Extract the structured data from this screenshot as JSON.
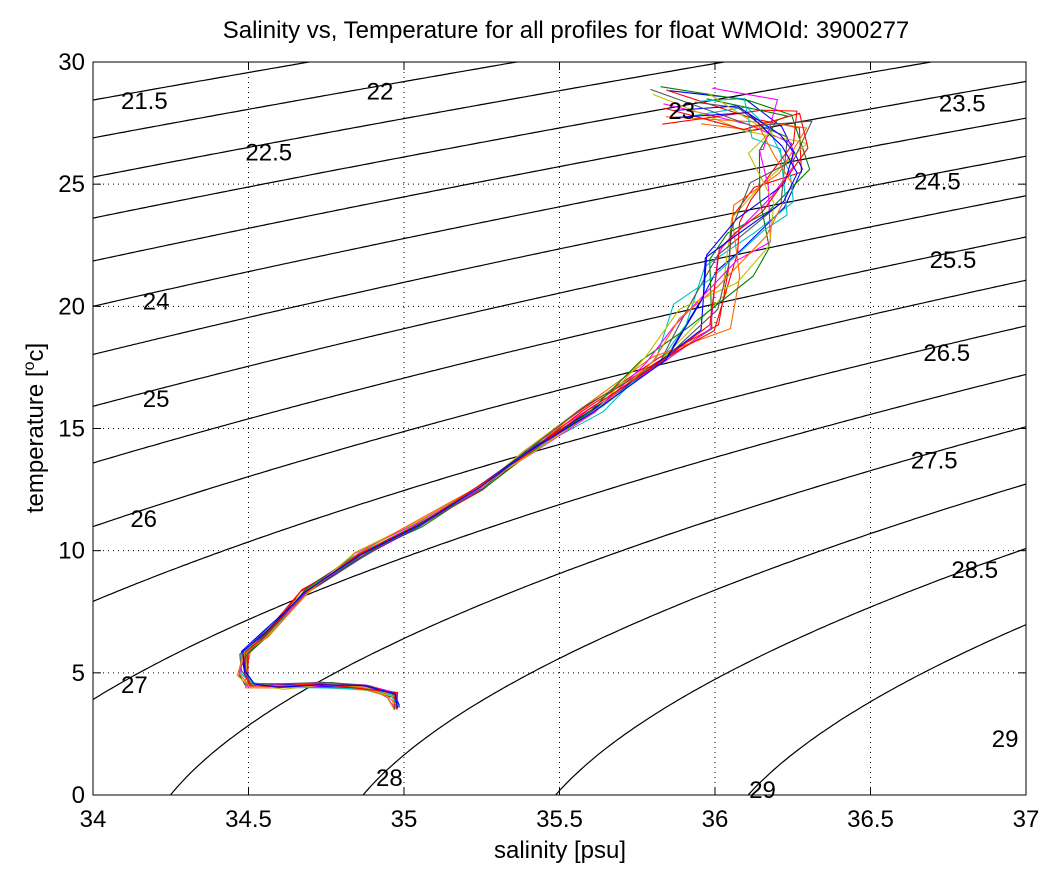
{
  "chart_data": {
    "type": "line",
    "title": "Salinity vs, Temperature for all profiles for float WMOId: 3900277",
    "xlabel": "salinity [psu]",
    "ylabel_main": "temperature [",
    "ylabel_sup": "o",
    "ylabel_end": "c]",
    "xlim": [
      34,
      37
    ],
    "ylim": [
      0,
      30
    ],
    "xticks": [
      34,
      34.5,
      35,
      35.5,
      36,
      36.5,
      37
    ],
    "xtick_labels": [
      "34",
      "34.5",
      "35",
      "35.5",
      "36",
      "36.5",
      "37"
    ],
    "yticks": [
      0,
      5,
      10,
      15,
      20,
      25,
      30
    ],
    "ytick_labels": [
      "0",
      "5",
      "10",
      "15",
      "20",
      "25",
      "30"
    ],
    "grid": true,
    "sigma_levels": [
      21.5,
      22,
      22.5,
      23,
      23.5,
      24,
      24.5,
      25,
      25.5,
      26,
      26.5,
      27,
      27.5,
      28,
      28.5,
      29
    ],
    "contour_labels": [
      {
        "text": "21.5",
        "x": 34.09,
        "y": 28.4
      },
      {
        "text": "22",
        "x": 34.88,
        "y": 28.8
      },
      {
        "text": "22.5",
        "x": 34.49,
        "y": 26.3
      },
      {
        "text": "23",
        "x": 35.85,
        "y": 28.0
      },
      {
        "text": "23.5",
        "x": 36.72,
        "y": 28.3
      },
      {
        "text": "24",
        "x": 34.16,
        "y": 20.2
      },
      {
        "text": "24.5",
        "x": 36.64,
        "y": 25.1
      },
      {
        "text": "25",
        "x": 34.16,
        "y": 16.2
      },
      {
        "text": "25.5",
        "x": 36.69,
        "y": 21.9
      },
      {
        "text": "26",
        "x": 34.12,
        "y": 11.3
      },
      {
        "text": "26.5",
        "x": 36.67,
        "y": 18.1
      },
      {
        "text": "27",
        "x": 34.09,
        "y": 4.5
      },
      {
        "text": "27.5",
        "x": 36.63,
        "y": 13.7
      },
      {
        "text": "28",
        "x": 34.91,
        "y": 0.7
      },
      {
        "text": "28.5",
        "x": 36.76,
        "y": 9.2
      },
      {
        "text": "29",
        "x": 36.11,
        "y": 0.2
      },
      {
        "text": "29",
        "x": 36.89,
        "y": 2.3
      }
    ],
    "series_colors": [
      "#ff0000",
      "#0000ff",
      "#008000",
      "#00c0c0",
      "#ff00ff",
      "#c0c000",
      "#555555",
      "#ff6600"
    ],
    "profile_count": 18,
    "profile_base": [
      [
        34.97,
        3.6
      ],
      [
        34.96,
        4.1
      ],
      [
        34.88,
        4.4
      ],
      [
        34.75,
        4.5
      ],
      [
        34.6,
        4.45
      ],
      [
        34.5,
        4.5
      ],
      [
        34.48,
        5.0
      ],
      [
        34.49,
        5.8
      ],
      [
        34.56,
        6.6
      ],
      [
        34.68,
        8.3
      ],
      [
        34.85,
        9.8
      ],
      [
        35.05,
        11.1
      ],
      [
        35.25,
        12.6
      ],
      [
        35.4,
        14.0
      ],
      [
        35.6,
        15.8
      ],
      [
        35.8,
        17.8
      ],
      [
        35.95,
        19.8
      ],
      [
        36.05,
        21.6
      ],
      [
        36.12,
        23.0
      ],
      [
        36.16,
        24.5
      ],
      [
        36.2,
        26.2
      ],
      [
        36.22,
        27.2
      ],
      [
        36.15,
        27.8
      ],
      [
        35.9,
        28.2
      ]
    ]
  }
}
